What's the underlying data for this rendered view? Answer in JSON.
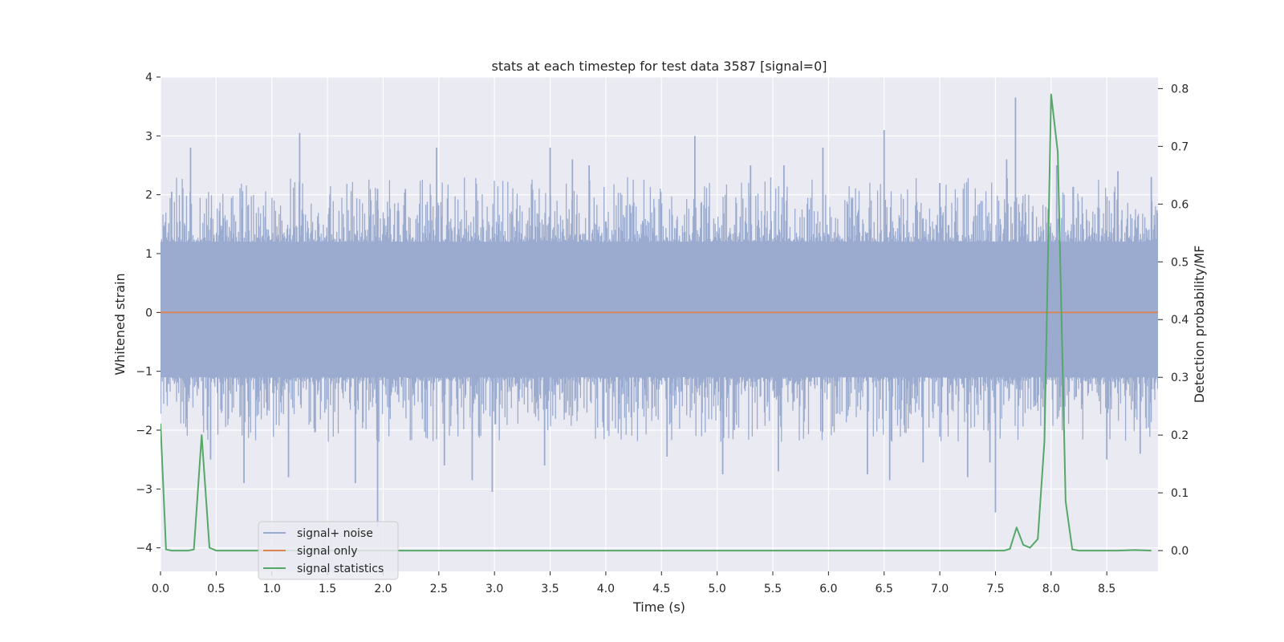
{
  "chart_data": {
    "type": "line",
    "title": "stats at each timestep for test data 3587 [signal=0]",
    "xlabel": "Time (s)",
    "ylabel_left": "Whitened strain",
    "ylabel_right": "Detection probability/MF",
    "xlim": [
      0.0,
      8.96
    ],
    "ylim_left": [
      -4.4,
      4.0
    ],
    "ylim_right": [
      -0.036,
      0.82
    ],
    "xticks": [
      0.0,
      0.5,
      1.0,
      1.5,
      2.0,
      2.5,
      3.0,
      3.5,
      4.0,
      4.5,
      5.0,
      5.5,
      6.0,
      6.5,
      7.0,
      7.5,
      8.0,
      8.5
    ],
    "xtick_labels": [
      "0.0",
      "0.5",
      "1.0",
      "1.5",
      "2.0",
      "2.5",
      "3.0",
      "3.5",
      "4.0",
      "4.5",
      "5.0",
      "5.5",
      "6.0",
      "6.5",
      "7.0",
      "7.5",
      "8.0",
      "8.5"
    ],
    "yticks_left": [
      4,
      3,
      2,
      1,
      0,
      -1,
      -2,
      -3,
      -4
    ],
    "ytick_labels_left": [
      "4",
      "3",
      "2",
      "1",
      "0",
      "−1",
      "−2",
      "−3",
      "−4"
    ],
    "yticks_right": [
      0.8,
      0.7,
      0.6,
      0.5,
      0.4,
      0.3,
      0.2,
      0.1,
      0.0
    ],
    "ytick_labels_right": [
      "0.8",
      "0.7",
      "0.6",
      "0.5",
      "0.4",
      "0.3",
      "0.2",
      "0.1",
      "0.0"
    ],
    "grid": true,
    "legend_position": "lower-left",
    "colors": {
      "axes_bg": "#eaeaf2",
      "grid": "#ffffff",
      "signal_noise": "#9aabcf",
      "signal_only": "#dd8452",
      "signal_statistics": "#55a868"
    },
    "series": [
      {
        "name": "signal+ noise",
        "axis": "left",
        "description_kind": "dense noise band",
        "band_low": -1.1,
        "band_high": 1.2,
        "spikes_up": [
          [
            0.27,
            2.8
          ],
          [
            1.25,
            3.05
          ],
          [
            1.95,
            2.1
          ],
          [
            2.2,
            2.1
          ],
          [
            2.48,
            2.8
          ],
          [
            3.5,
            2.8
          ],
          [
            3.85,
            2.5
          ],
          [
            4.8,
            3.0
          ],
          [
            5.6,
            2.5
          ],
          [
            5.95,
            2.8
          ],
          [
            6.5,
            3.1
          ],
          [
            7.0,
            2.2
          ],
          [
            7.68,
            3.65
          ],
          [
            7.6,
            2.6
          ],
          [
            8.05,
            2.5
          ],
          [
            8.6,
            2.4
          ],
          [
            8.9,
            2.3
          ],
          [
            0.1,
            2.05
          ],
          [
            3.7,
            2.6
          ],
          [
            5.3,
            2.5
          ]
        ],
        "spikes_down": [
          [
            0.75,
            -2.9
          ],
          [
            1.15,
            -2.8
          ],
          [
            1.75,
            -2.9
          ],
          [
            1.95,
            -3.65
          ],
          [
            2.55,
            -2.6
          ],
          [
            2.8,
            -2.85
          ],
          [
            2.98,
            -3.05
          ],
          [
            3.45,
            -2.6
          ],
          [
            4.55,
            -2.45
          ],
          [
            5.05,
            -2.75
          ],
          [
            5.55,
            -2.7
          ],
          [
            6.35,
            -2.75
          ],
          [
            6.55,
            -2.85
          ],
          [
            6.85,
            -2.55
          ],
          [
            7.25,
            -2.8
          ],
          [
            7.5,
            -3.4
          ],
          [
            7.45,
            -2.55
          ],
          [
            8.5,
            -2.5
          ],
          [
            8.8,
            -2.4
          ],
          [
            0.45,
            -2.5
          ]
        ]
      },
      {
        "name": "signal only",
        "axis": "left",
        "x": [
          0.0,
          8.96
        ],
        "y": [
          0.0,
          0.0
        ]
      },
      {
        "name": "signal statistics",
        "axis": "right",
        "x": [
          0.0,
          0.05,
          0.1,
          0.15,
          0.2,
          0.25,
          0.3,
          0.37,
          0.44,
          0.5,
          0.6,
          1.0,
          2.0,
          3.0,
          4.0,
          5.0,
          6.0,
          7.0,
          7.5,
          7.58,
          7.63,
          7.69,
          7.75,
          7.81,
          7.88,
          7.94,
          8.0,
          8.06,
          8.13,
          8.19,
          8.25,
          8.4,
          8.6,
          8.75,
          8.9
        ],
        "y": [
          0.22,
          0.002,
          0.0,
          0.0,
          0.0,
          0.0,
          0.002,
          0.2,
          0.005,
          0.0,
          0.0,
          0.0,
          0.0,
          0.0,
          0.0,
          0.0,
          0.0,
          0.0,
          0.0,
          0.0,
          0.003,
          0.04,
          0.01,
          0.005,
          0.02,
          0.19,
          0.79,
          0.69,
          0.085,
          0.002,
          0.0,
          0.0,
          0.0,
          0.001,
          0.0
        ]
      }
    ]
  }
}
